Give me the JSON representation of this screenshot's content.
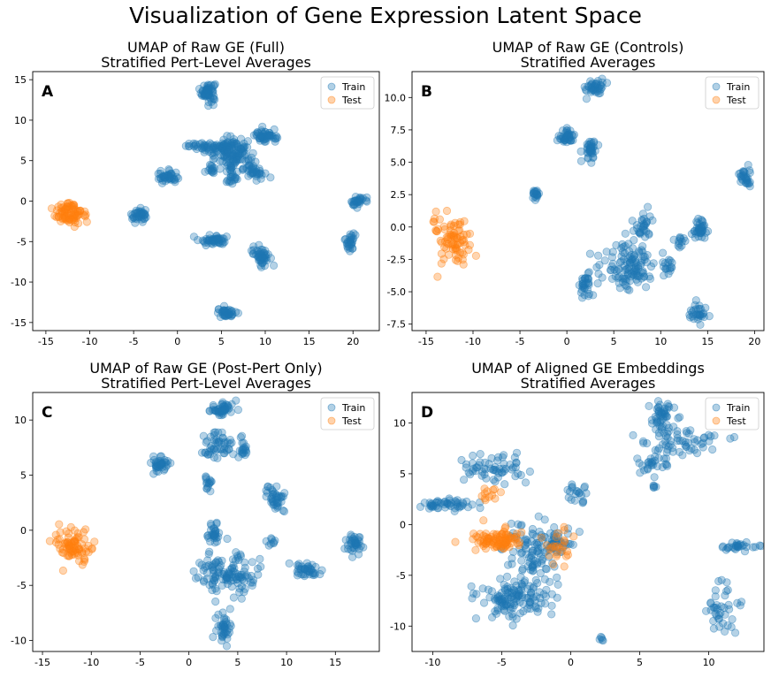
{
  "figure": {
    "suptitle": "Visualization of Gene Expression Latent Space"
  },
  "colors": {
    "train": "#1f77b4",
    "test": "#ff7f0e"
  },
  "chart_data": [
    {
      "type": "scatter",
      "panel": "A",
      "title": "UMAP of Raw GE (Full)",
      "subtitle": "Stratified Pert-Level Averages",
      "xlim": [
        -16.5,
        23
      ],
      "ylim": [
        -16,
        16
      ],
      "xticks": [
        -15,
        -10,
        -5,
        0,
        5,
        10,
        15,
        20
      ],
      "yticks": [
        -15,
        -10,
        -5,
        0,
        5,
        10,
        15
      ],
      "legend": {
        "position": "top-right",
        "entries": [
          "Train",
          "Test"
        ]
      },
      "series": [
        {
          "name": "Train",
          "color": "#1f77b4",
          "clusters": [
            {
              "x": 3.5,
              "y": 13.5,
              "sx": 0.4,
              "sy": 0.6,
              "n": 60
            },
            {
              "x": 5.5,
              "y": 6.5,
              "sx": 1.2,
              "sy": 0.7,
              "n": 90
            },
            {
              "x": 3.0,
              "y": 6.8,
              "sx": 1.0,
              "sy": 0.2,
              "n": 30
            },
            {
              "x": 6.5,
              "y": 5.0,
              "sx": 0.8,
              "sy": 1.0,
              "n": 60
            },
            {
              "x": 10.0,
              "y": 8.0,
              "sx": 0.6,
              "sy": 0.4,
              "n": 50
            },
            {
              "x": 8.8,
              "y": 4.0,
              "sx": 0.6,
              "sy": 0.6,
              "n": 40
            },
            {
              "x": 4.0,
              "y": 4.0,
              "sx": 0.3,
              "sy": 0.3,
              "n": 15
            },
            {
              "x": 6.2,
              "y": 2.6,
              "sx": 0.3,
              "sy": 0.3,
              "n": 12
            },
            {
              "x": -1.2,
              "y": 2.9,
              "sx": 0.6,
              "sy": 0.4,
              "n": 40
            },
            {
              "x": -4.3,
              "y": -1.8,
              "sx": 0.5,
              "sy": 0.4,
              "n": 40
            },
            {
              "x": 20.5,
              "y": 0.0,
              "sx": 0.4,
              "sy": 0.4,
              "n": 30
            },
            {
              "x": 19.7,
              "y": -5.0,
              "sx": 0.3,
              "sy": 0.6,
              "n": 30
            },
            {
              "x": 4.2,
              "y": -4.8,
              "sx": 0.8,
              "sy": 0.3,
              "n": 50
            },
            {
              "x": 9.5,
              "y": -6.7,
              "sx": 0.5,
              "sy": 0.6,
              "n": 50
            },
            {
              "x": 5.6,
              "y": -13.8,
              "sx": 0.5,
              "sy": 0.3,
              "n": 40
            }
          ]
        },
        {
          "name": "Test",
          "color": "#ff7f0e",
          "clusters": [
            {
              "x": -12.2,
              "y": -1.5,
              "sx": 1.0,
              "sy": 0.8,
              "n": 80
            }
          ]
        }
      ]
    },
    {
      "type": "scatter",
      "panel": "B",
      "title": "UMAP of Raw GE (Controls)",
      "subtitle": "Stratified Averages",
      "xlim": [
        -16.5,
        21
      ],
      "ylim": [
        -8,
        12
      ],
      "xticks": [
        -15,
        -10,
        -5,
        0,
        5,
        10,
        15,
        20
      ],
      "yticks": [
        -7.5,
        -5.0,
        -2.5,
        0.0,
        2.5,
        5.0,
        7.5,
        10.0
      ],
      "legend": {
        "position": "top-right",
        "entries": [
          "Train",
          "Test"
        ]
      },
      "series": [
        {
          "name": "Train",
          "color": "#1f77b4",
          "clusters": [
            {
              "x": 3.0,
              "y": 10.8,
              "sx": 0.5,
              "sy": 0.3,
              "n": 40
            },
            {
              "x": 0.0,
              "y": 7.0,
              "sx": 0.4,
              "sy": 0.3,
              "n": 40
            },
            {
              "x": 2.5,
              "y": 6.0,
              "sx": 0.3,
              "sy": 0.4,
              "n": 40
            },
            {
              "x": -3.3,
              "y": 2.5,
              "sx": 0.2,
              "sy": 0.2,
              "n": 20
            },
            {
              "x": 19.0,
              "y": 3.8,
              "sx": 0.3,
              "sy": 0.4,
              "n": 30
            },
            {
              "x": 8.0,
              "y": 0.2,
              "sx": 0.5,
              "sy": 0.5,
              "n": 30
            },
            {
              "x": 14.2,
              "y": -0.2,
              "sx": 0.4,
              "sy": 0.4,
              "n": 40
            },
            {
              "x": 6.5,
              "y": -3.0,
              "sx": 1.5,
              "sy": 1.0,
              "n": 120
            },
            {
              "x": 2.0,
              "y": -4.5,
              "sx": 0.4,
              "sy": 0.4,
              "n": 30
            },
            {
              "x": 10.8,
              "y": -3.0,
              "sx": 0.3,
              "sy": 0.3,
              "n": 15
            },
            {
              "x": 14.0,
              "y": -6.6,
              "sx": 0.5,
              "sy": 0.3,
              "n": 30
            },
            {
              "x": 12.0,
              "y": -1.0,
              "sx": 0.3,
              "sy": 0.3,
              "n": 12
            }
          ]
        },
        {
          "name": "Test",
          "color": "#ff7f0e",
          "clusters": [
            {
              "x": -12.5,
              "y": -1.0,
              "sx": 1.1,
              "sy": 0.9,
              "n": 80
            }
          ]
        }
      ]
    },
    {
      "type": "scatter",
      "panel": "C",
      "title": "UMAP of Raw GE (Post-Pert Only)",
      "subtitle": "Stratified Pert-Level Averages",
      "xlim": [
        -16,
        19.5
      ],
      "ylim": [
        -11,
        12.5
      ],
      "xticks": [
        -15,
        -10,
        -5,
        0,
        5,
        10,
        15
      ],
      "yticks": [
        -10,
        -5,
        0,
        5,
        10
      ],
      "legend": {
        "position": "top-right",
        "entries": [
          "Train",
          "Test"
        ]
      },
      "series": [
        {
          "name": "Train",
          "color": "#1f77b4",
          "clusters": [
            {
              "x": 3.5,
              "y": 11.0,
              "sx": 0.7,
              "sy": 0.3,
              "n": 50
            },
            {
              "x": -3.0,
              "y": 6.0,
              "sx": 0.5,
              "sy": 0.4,
              "n": 40
            },
            {
              "x": 3.0,
              "y": 7.5,
              "sx": 0.7,
              "sy": 0.8,
              "n": 50
            },
            {
              "x": 5.5,
              "y": 7.5,
              "sx": 0.4,
              "sy": 0.4,
              "n": 20
            },
            {
              "x": 2.0,
              "y": 4.2,
              "sx": 0.2,
              "sy": 0.4,
              "n": 15
            },
            {
              "x": 8.8,
              "y": 2.8,
              "sx": 0.5,
              "sy": 0.6,
              "n": 40
            },
            {
              "x": 17.0,
              "y": -1.3,
              "sx": 0.4,
              "sy": 0.5,
              "n": 40
            },
            {
              "x": 2.5,
              "y": -0.3,
              "sx": 0.4,
              "sy": 0.5,
              "n": 30
            },
            {
              "x": 4.0,
              "y": -4.0,
              "sx": 1.5,
              "sy": 1.0,
              "n": 120
            },
            {
              "x": 12.0,
              "y": -3.6,
              "sx": 0.8,
              "sy": 0.3,
              "n": 40
            },
            {
              "x": 3.5,
              "y": -9.0,
              "sx": 0.4,
              "sy": 0.8,
              "n": 40
            },
            {
              "x": 8.5,
              "y": -1.0,
              "sx": 0.2,
              "sy": 0.2,
              "n": 8
            }
          ]
        },
        {
          "name": "Test",
          "color": "#ff7f0e",
          "clusters": [
            {
              "x": -12.0,
              "y": -1.5,
              "sx": 1.0,
              "sy": 0.8,
              "n": 80
            }
          ]
        }
      ]
    },
    {
      "type": "scatter",
      "panel": "D",
      "title": "UMAP of Aligned GE Embeddings",
      "subtitle": "Stratified Averages",
      "xlim": [
        -11.5,
        14
      ],
      "ylim": [
        -12.5,
        13
      ],
      "xticks": [
        -10,
        -5,
        0,
        5,
        10
      ],
      "yticks": [
        -10,
        -5,
        0,
        5,
        10
      ],
      "legend": {
        "position": "top-right",
        "entries": [
          "Train",
          "Test"
        ]
      },
      "series": [
        {
          "name": "Train",
          "color": "#1f77b4",
          "clusters": [
            {
              "x": 6.5,
              "y": 10.5,
              "sx": 0.5,
              "sy": 0.8,
              "n": 50
            },
            {
              "x": 8.0,
              "y": 8.0,
              "sx": 1.5,
              "sy": 0.8,
              "n": 60
            },
            {
              "x": 6.0,
              "y": 6.0,
              "sx": 0.6,
              "sy": 0.4,
              "n": 25
            },
            {
              "x": 12.2,
              "y": -2.2,
              "sx": 0.6,
              "sy": 0.2,
              "n": 30
            },
            {
              "x": 11.0,
              "y": -8.5,
              "sx": 0.6,
              "sy": 1.2,
              "n": 40
            },
            {
              "x": -9.0,
              "y": 2.0,
              "sx": 1.0,
              "sy": 0.3,
              "n": 50
            },
            {
              "x": -5.5,
              "y": 5.5,
              "sx": 1.2,
              "sy": 0.7,
              "n": 60
            },
            {
              "x": -4.0,
              "y": -7.5,
              "sx": 1.3,
              "sy": 0.9,
              "n": 120
            },
            {
              "x": -3.0,
              "y": -3.0,
              "sx": 0.9,
              "sy": 1.8,
              "n": 100
            },
            {
              "x": -1.0,
              "y": -2.0,
              "sx": 0.7,
              "sy": 0.6,
              "n": 40
            },
            {
              "x": 0.5,
              "y": 3.0,
              "sx": 0.5,
              "sy": 0.6,
              "n": 20
            },
            {
              "x": 2.3,
              "y": -11.3,
              "sx": 0.1,
              "sy": 0.1,
              "n": 5
            },
            {
              "x": 6.0,
              "y": 3.7,
              "sx": 0.1,
              "sy": 0.1,
              "n": 5
            }
          ]
        },
        {
          "name": "Test",
          "color": "#ff7f0e",
          "clusters": [
            {
              "x": -5.5,
              "y": -1.5,
              "sx": 0.9,
              "sy": 0.6,
              "n": 90
            },
            {
              "x": -1.0,
              "y": -2.0,
              "sx": 0.6,
              "sy": 0.8,
              "n": 25
            },
            {
              "x": -6.0,
              "y": 3.0,
              "sx": 0.5,
              "sy": 0.4,
              "n": 12
            }
          ]
        }
      ]
    }
  ]
}
